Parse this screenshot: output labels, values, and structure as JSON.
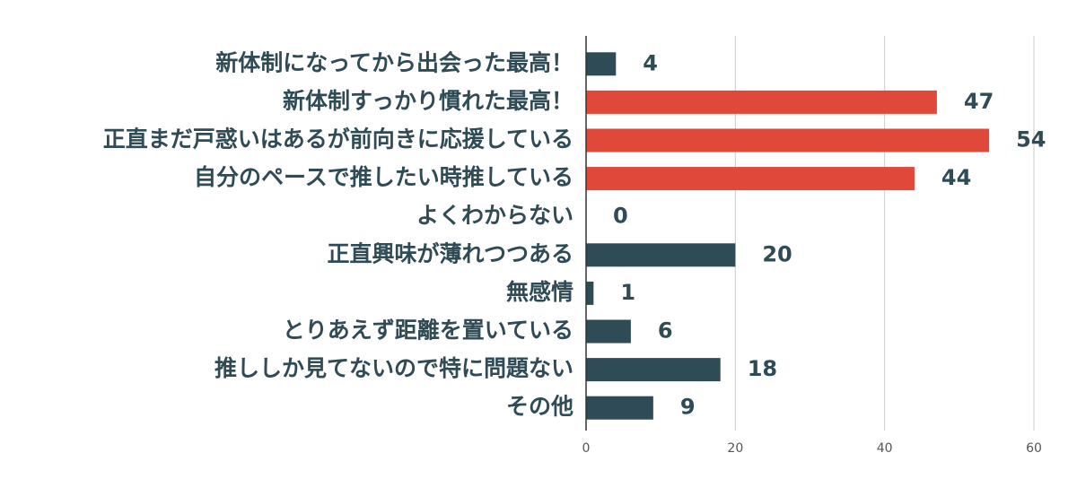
{
  "chart_data": {
    "type": "hbar",
    "categories": [
      "新体制になってから出会った最高！",
      "新体制すっかり慣れた最高！",
      "正直まだ戸惑いはあるが前向きに応援している",
      "自分のペースで推したい時推している",
      "よくわからない",
      "正直興味が薄れつつある",
      "無感情",
      "とりあえず距離を置いている",
      "推ししか見てないので特に問題ない",
      "その他"
    ],
    "values": [
      4,
      47,
      54,
      44,
      0,
      20,
      1,
      6,
      18,
      9
    ],
    "colors": [
      "#2f4b56",
      "#e0493a",
      "#e0493a",
      "#e0493a",
      "#2f4b56",
      "#2f4b56",
      "#2f4b56",
      "#2f4b56",
      "#2f4b56",
      "#2f4b56"
    ],
    "xlim": [
      0,
      60
    ],
    "xticks": [
      0,
      20,
      40,
      60
    ],
    "grid": true
  }
}
